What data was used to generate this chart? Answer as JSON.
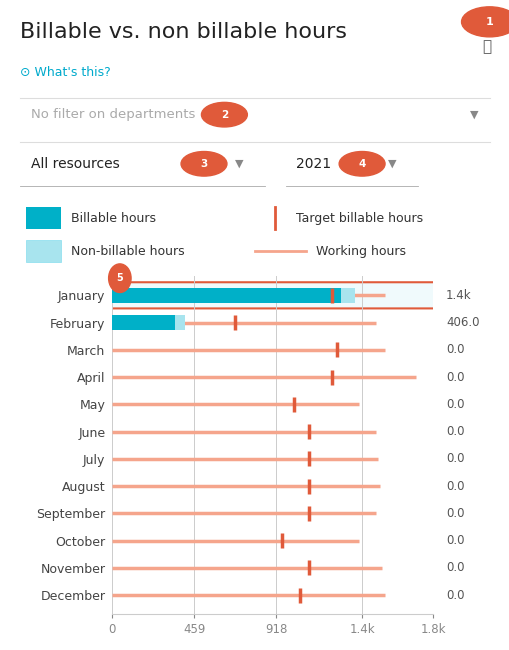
{
  "title": "Billable vs. non billable hours",
  "whats_this": "What's this?",
  "filter_label": "No filter on departments",
  "resources_label": "All resources",
  "year_label": "2021",
  "months": [
    "January",
    "February",
    "March",
    "April",
    "May",
    "June",
    "July",
    "August",
    "September",
    "October",
    "November",
    "December"
  ],
  "billable_hours": [
    1280,
    350,
    0,
    0,
    0,
    0,
    0,
    0,
    0,
    0,
    0,
    0
  ],
  "nonbillable_hours": [
    80,
    56,
    0,
    0,
    0,
    0,
    0,
    0,
    0,
    0,
    0,
    0
  ],
  "working_hours": [
    1530,
    1480,
    1530,
    1700,
    1380,
    1480,
    1490,
    1500,
    1480,
    1380,
    1510,
    1530
  ],
  "target_billable": [
    1230,
    690,
    1260,
    1230,
    1020,
    1100,
    1100,
    1100,
    1100,
    950,
    1100,
    1050
  ],
  "value_labels": [
    "1.4k",
    "406.0",
    "0.0",
    "0.0",
    "0.0",
    "0.0",
    "0.0",
    "0.0",
    "0.0",
    "0.0",
    "0.0",
    "0.0"
  ],
  "xlim": [
    0,
    1800
  ],
  "xticks": [
    0,
    459,
    918,
    1400,
    1800
  ],
  "xticklabels": [
    "0",
    "459",
    "918",
    "1.4k",
    "1.8k"
  ],
  "color_billable": "#00b0c8",
  "color_nonbillable": "#a8e4ee",
  "color_working": "#f5a58c",
  "color_target": "#e05a3a",
  "color_grid": "#cccccc",
  "color_highlight_box": "#e8f8fb",
  "highlight_month": "January",
  "background_color": "#ffffff",
  "axis_label_color": "#555555",
  "value_label_color": "#555555",
  "legend_fontsize": 9,
  "month_fontsize": 9,
  "value_fontsize": 9,
  "title_fontsize": 16
}
